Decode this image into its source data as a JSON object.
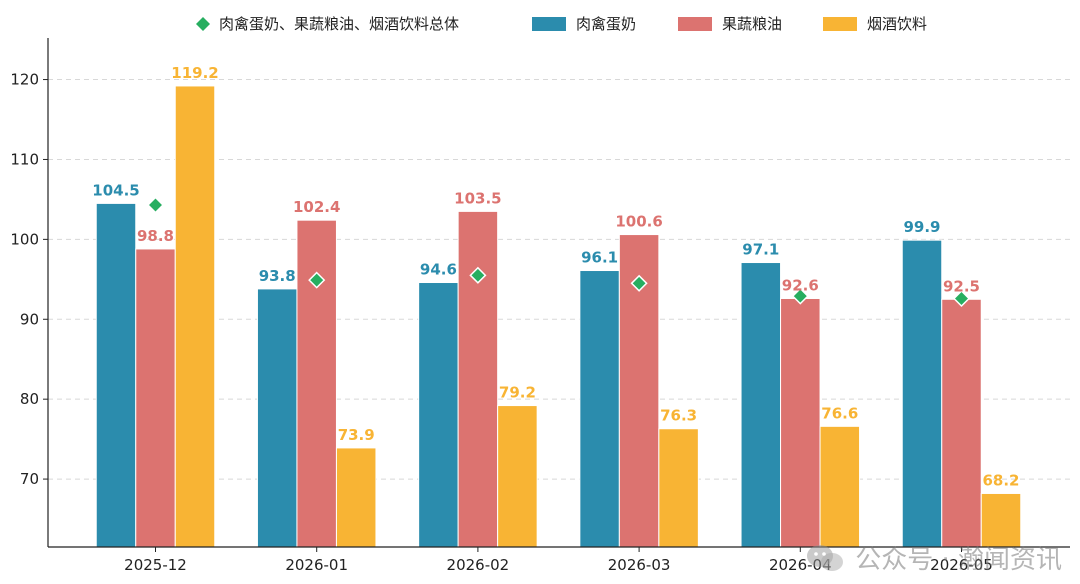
{
  "chart_data": {
    "type": "bar",
    "categories": [
      "2025-12",
      "2026-01",
      "2026-02",
      "2026-03",
      "2026-04",
      "2026-05"
    ],
    "series": [
      {
        "name": "肉禽蛋奶",
        "values": [
          104.5,
          93.8,
          94.6,
          96.1,
          97.1,
          99.9
        ],
        "color": "#2b8cad"
      },
      {
        "name": "果蔬粮油",
        "values": [
          98.8,
          102.4,
          103.5,
          100.6,
          92.6,
          92.5
        ],
        "color": "#dc7370"
      },
      {
        "name": "烟酒饮料",
        "values": [
          119.2,
          73.9,
          79.2,
          76.3,
          76.6,
          68.2
        ],
        "color": "#f8b434"
      }
    ],
    "overall": {
      "name": "肉禽蛋奶、果蔬粮油、烟酒饮料总体",
      "values": [
        104.3,
        94.9,
        95.5,
        94.5,
        92.9,
        92.6
      ],
      "color": "#27ae60",
      "marker": "diamond"
    },
    "ylim": [
      61.5,
      125.2
    ],
    "yticks": [
      70,
      80,
      90,
      100,
      110,
      120
    ],
    "grid": "horizontal-dashed",
    "legend": "top-center"
  },
  "watermark": {
    "icon": "wechat-icon",
    "text": "公众号 · 瀚闻资讯"
  }
}
